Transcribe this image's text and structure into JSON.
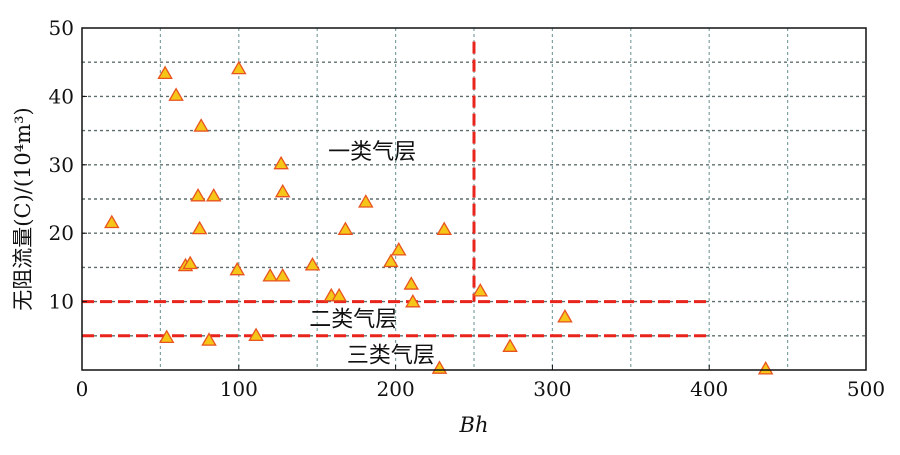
{
  "chart_data": {
    "type": "scatter",
    "xlabel": "Bh",
    "ylabel": "无阻流量(C)/(10⁴m³)",
    "xlim": [
      0,
      500
    ],
    "ylim": [
      0,
      50
    ],
    "xticks": [
      0,
      100,
      200,
      300,
      400,
      500
    ],
    "yticks": [
      10,
      20,
      30,
      40,
      50
    ],
    "x_gridlines": [
      50,
      100,
      150,
      200,
      250,
      300,
      350,
      400,
      450
    ],
    "y_gridlines": [
      5,
      10,
      15,
      20,
      25,
      30,
      35,
      40,
      45
    ],
    "grid": true,
    "marker": "triangle",
    "marker_color": "#f5c518",
    "marker_edge_color": "#e8531e",
    "threshold_color": "#e8241c",
    "thresholds": [
      {
        "type": "horizontal",
        "y": 10,
        "x_range": [
          0,
          400
        ]
      },
      {
        "type": "horizontal",
        "y": 5,
        "x_range": [
          0,
          400
        ]
      },
      {
        "type": "vertical",
        "x": 250,
        "y_range": [
          10,
          48
        ]
      }
    ],
    "zone_labels": [
      {
        "text": "一类气层",
        "x": 185,
        "y": 32
      },
      {
        "text": "二类气层",
        "x": 173,
        "y": 7.5
      },
      {
        "text": "三类气层",
        "x": 197,
        "y": 2.3
      }
    ],
    "points": [
      {
        "x": 19,
        "y": 21.5
      },
      {
        "x": 53,
        "y": 43.3
      },
      {
        "x": 54,
        "y": 4.7
      },
      {
        "x": 60,
        "y": 40.1
      },
      {
        "x": 66,
        "y": 15.2
      },
      {
        "x": 69,
        "y": 15.5
      },
      {
        "x": 74,
        "y": 25.4
      },
      {
        "x": 75,
        "y": 20.6
      },
      {
        "x": 76,
        "y": 35.6
      },
      {
        "x": 81,
        "y": 4.3
      },
      {
        "x": 84,
        "y": 25.4
      },
      {
        "x": 99,
        "y": 14.6
      },
      {
        "x": 100,
        "y": 44.0
      },
      {
        "x": 111,
        "y": 5.0
      },
      {
        "x": 120,
        "y": 13.7
      },
      {
        "x": 127,
        "y": 30.1
      },
      {
        "x": 128,
        "y": 13.7
      },
      {
        "x": 128,
        "y": 26.0
      },
      {
        "x": 147,
        "y": 15.3
      },
      {
        "x": 159,
        "y": 10.8
      },
      {
        "x": 164,
        "y": 10.8
      },
      {
        "x": 168,
        "y": 20.5
      },
      {
        "x": 181,
        "y": 24.5
      },
      {
        "x": 197,
        "y": 15.8
      },
      {
        "x": 202,
        "y": 17.5
      },
      {
        "x": 210,
        "y": 12.5
      },
      {
        "x": 211,
        "y": 9.9
      },
      {
        "x": 228,
        "y": 0.2
      },
      {
        "x": 231,
        "y": 20.5
      },
      {
        "x": 254,
        "y": 11.5
      },
      {
        "x": 273,
        "y": 3.4
      },
      {
        "x": 308,
        "y": 7.7
      },
      {
        "x": 436,
        "y": 0.1
      }
    ]
  }
}
